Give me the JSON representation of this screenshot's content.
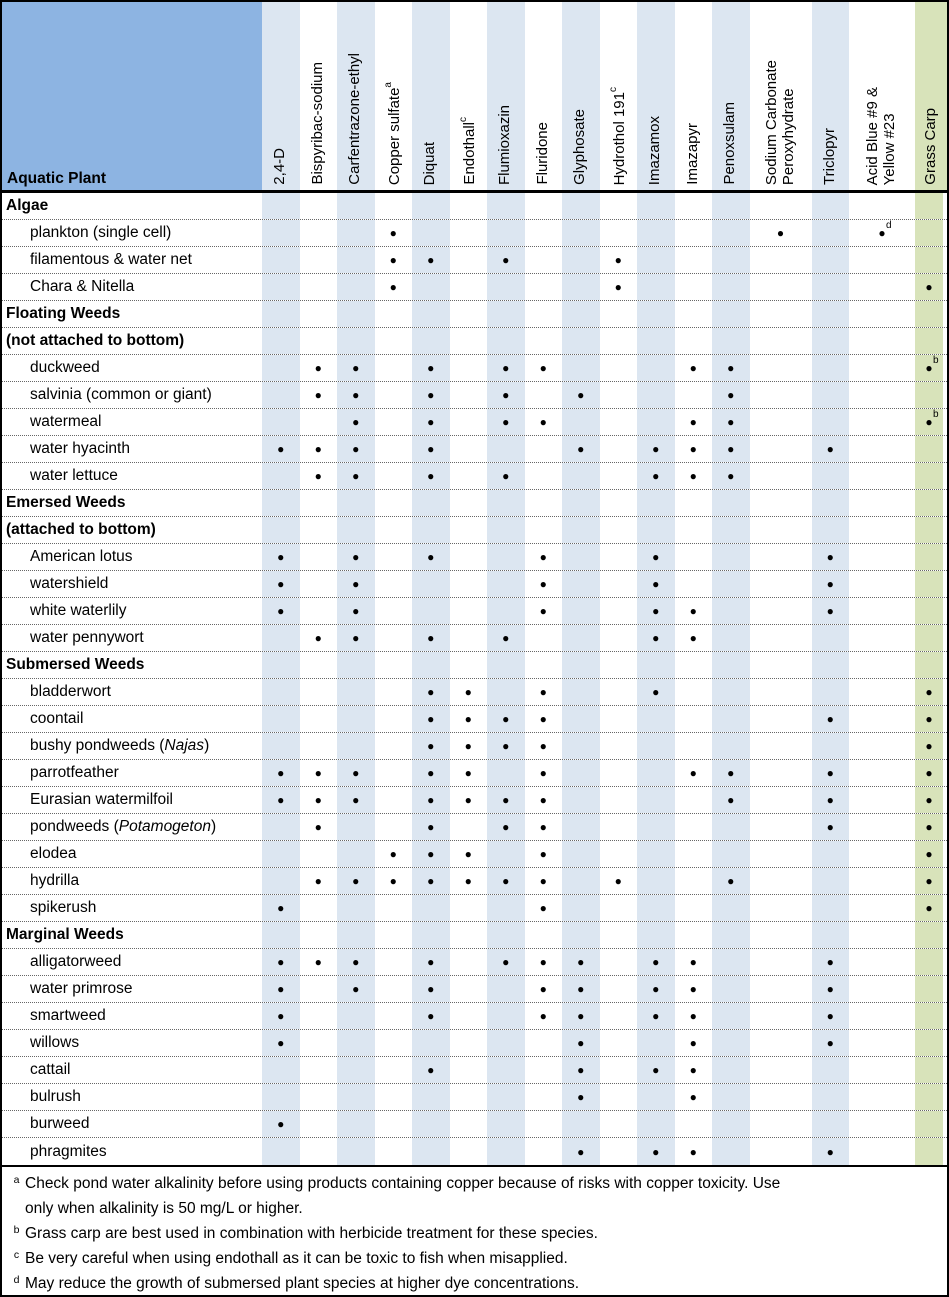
{
  "header": {
    "plant_column_label": "Aquatic Plant"
  },
  "columns": [
    {
      "label": "2,4-D",
      "shade": "blue",
      "width": "narrow"
    },
    {
      "label": "Bispyribac-sodium",
      "shade": "white",
      "width": "narrow"
    },
    {
      "label": "Carfentrazone-ethyl",
      "shade": "blue",
      "width": "narrow"
    },
    {
      "label": "Copper sulfate",
      "sup": "a",
      "shade": "white",
      "width": "narrow"
    },
    {
      "label": "Diquat",
      "shade": "blue",
      "width": "narrow"
    },
    {
      "label": "Endothall",
      "sup": "c",
      "shade": "white",
      "width": "narrow"
    },
    {
      "label": "Flumioxazin",
      "shade": "blue",
      "width": "narrow"
    },
    {
      "label": "Fluridone",
      "shade": "white",
      "width": "narrow"
    },
    {
      "label": "Glyphosate",
      "shade": "blue",
      "width": "narrow"
    },
    {
      "label": "Hydrothol 191",
      "sup": "c",
      "shade": "white",
      "width": "narrow"
    },
    {
      "label": "Imazamox",
      "shade": "blue",
      "width": "narrow"
    },
    {
      "label": "Imazapyr",
      "shade": "white",
      "width": "narrow"
    },
    {
      "label": "Penoxsulam",
      "shade": "blue",
      "width": "narrow"
    },
    {
      "label": "Sodium Carbonate\nPeroxyhydrate",
      "shade": "white",
      "width": "wide-a"
    },
    {
      "label": "Triclopyr",
      "shade": "blue",
      "width": "narrow"
    },
    {
      "label": "Acid Blue #9 &\nYellow #23",
      "shade": "white",
      "width": "wide-b"
    },
    {
      "label": "Grass Carp",
      "shade": "green",
      "width": "fill"
    }
  ],
  "rows": [
    {
      "section": true,
      "label": "Algae"
    },
    {
      "section": false,
      "label": "plankton (single cell)",
      "dots": [
        [
          4
        ],
        [
          14
        ],
        [
          16,
          "d"
        ]
      ]
    },
    {
      "section": false,
      "label": "filamentous & water net",
      "dots": [
        [
          4
        ],
        [
          5
        ],
        [
          7
        ],
        [
          10
        ]
      ]
    },
    {
      "section": false,
      "label": "Chara & Nitella",
      "dots": [
        [
          4
        ],
        [
          10
        ],
        [
          17
        ]
      ]
    },
    {
      "section": true,
      "label": "Floating Weeds"
    },
    {
      "section": true,
      "label": "(not attached to bottom)"
    },
    {
      "section": false,
      "label": "duckweed",
      "dots": [
        [
          2
        ],
        [
          3
        ],
        [
          5
        ],
        [
          7
        ],
        [
          8
        ],
        [
          12
        ],
        [
          13
        ],
        [
          17,
          "b"
        ]
      ]
    },
    {
      "section": false,
      "label": "salvinia (common or giant)",
      "dots": [
        [
          2
        ],
        [
          3
        ],
        [
          5
        ],
        [
          7
        ],
        [
          9
        ],
        [
          13
        ]
      ]
    },
    {
      "section": false,
      "label": "watermeal",
      "dots": [
        [
          3
        ],
        [
          5
        ],
        [
          7
        ],
        [
          8
        ],
        [
          12
        ],
        [
          13
        ],
        [
          17,
          "b"
        ]
      ]
    },
    {
      "section": false,
      "label": "water hyacinth",
      "dots": [
        [
          1
        ],
        [
          2
        ],
        [
          3
        ],
        [
          5
        ],
        [
          9
        ],
        [
          11
        ],
        [
          12
        ],
        [
          13
        ],
        [
          15
        ]
      ]
    },
    {
      "section": false,
      "label": "water lettuce",
      "dots": [
        [
          2
        ],
        [
          3
        ],
        [
          5
        ],
        [
          7
        ],
        [
          11
        ],
        [
          12
        ],
        [
          13
        ]
      ]
    },
    {
      "section": true,
      "label": "Emersed Weeds"
    },
    {
      "section": true,
      "label": "(attached to bottom)"
    },
    {
      "section": false,
      "label": "American lotus",
      "dots": [
        [
          1
        ],
        [
          3
        ],
        [
          5
        ],
        [
          8
        ],
        [
          11
        ],
        [
          15
        ]
      ]
    },
    {
      "section": false,
      "label": "watershield",
      "dots": [
        [
          1
        ],
        [
          3
        ],
        [
          8
        ],
        [
          11
        ],
        [
          15
        ]
      ]
    },
    {
      "section": false,
      "label": "white waterlily",
      "dots": [
        [
          1
        ],
        [
          3
        ],
        [
          8
        ],
        [
          11
        ],
        [
          12
        ],
        [
          15
        ]
      ]
    },
    {
      "section": false,
      "label": "water pennywort",
      "dots": [
        [
          2
        ],
        [
          3
        ],
        [
          5
        ],
        [
          7
        ],
        [
          11
        ],
        [
          12
        ]
      ]
    },
    {
      "section": true,
      "label": "Submersed Weeds"
    },
    {
      "section": false,
      "label": "bladderwort",
      "dots": [
        [
          5
        ],
        [
          6
        ],
        [
          8
        ],
        [
          11
        ],
        [
          17
        ]
      ]
    },
    {
      "section": false,
      "label": "coontail",
      "dots": [
        [
          5
        ],
        [
          6
        ],
        [
          7
        ],
        [
          8
        ],
        [
          15
        ],
        [
          17
        ]
      ]
    },
    {
      "section": false,
      "label": "bushy pondweeds (Najas )",
      "parts": [
        {
          "text": "bushy pondweeds ("
        },
        {
          "text": "Najas",
          "italic": true
        },
        {
          "text": " )"
        }
      ],
      "dots": [
        [
          5
        ],
        [
          6
        ],
        [
          7
        ],
        [
          8
        ],
        [
          17
        ]
      ]
    },
    {
      "section": false,
      "label": "parrotfeather",
      "dots": [
        [
          1
        ],
        [
          2
        ],
        [
          3
        ],
        [
          5
        ],
        [
          6
        ],
        [
          8
        ],
        [
          12
        ],
        [
          13
        ],
        [
          15
        ],
        [
          17
        ]
      ]
    },
    {
      "section": false,
      "label": "Eurasian watermilfoil",
      "dots": [
        [
          1
        ],
        [
          2
        ],
        [
          3
        ],
        [
          5
        ],
        [
          6
        ],
        [
          7
        ],
        [
          8
        ],
        [
          13
        ],
        [
          15
        ],
        [
          17
        ]
      ]
    },
    {
      "section": false,
      "label": "pondweeds (Potamogeton )",
      "parts": [
        {
          "text": "pondweeds ("
        },
        {
          "text": "Potamogeton",
          "italic": true
        },
        {
          "text": " )"
        }
      ],
      "dots": [
        [
          2
        ],
        [
          5
        ],
        [
          7
        ],
        [
          8
        ],
        [
          15
        ],
        [
          17
        ]
      ]
    },
    {
      "section": false,
      "label": "elodea",
      "dots": [
        [
          4
        ],
        [
          5
        ],
        [
          6
        ],
        [
          8
        ],
        [
          17
        ]
      ]
    },
    {
      "section": false,
      "label": "hydrilla",
      "dots": [
        [
          2
        ],
        [
          3
        ],
        [
          4
        ],
        [
          5
        ],
        [
          6
        ],
        [
          7
        ],
        [
          8
        ],
        [
          10
        ],
        [
          13
        ],
        [
          17
        ]
      ]
    },
    {
      "section": false,
      "label": "spikerush",
      "dots": [
        [
          1
        ],
        [
          8
        ],
        [
          17
        ]
      ]
    },
    {
      "section": true,
      "label": "Marginal Weeds"
    },
    {
      "section": false,
      "label": "alligatorweed",
      "dots": [
        [
          1
        ],
        [
          2
        ],
        [
          3
        ],
        [
          5
        ],
        [
          7
        ],
        [
          8
        ],
        [
          9
        ],
        [
          11
        ],
        [
          12
        ],
        [
          15
        ]
      ]
    },
    {
      "section": false,
      "label": "water primrose",
      "dots": [
        [
          1
        ],
        [
          3
        ],
        [
          5
        ],
        [
          8
        ],
        [
          9
        ],
        [
          11
        ],
        [
          12
        ],
        [
          15
        ]
      ]
    },
    {
      "section": false,
      "label": "smartweed",
      "dots": [
        [
          1
        ],
        [
          5
        ],
        [
          8
        ],
        [
          9
        ],
        [
          11
        ],
        [
          12
        ],
        [
          15
        ]
      ]
    },
    {
      "section": false,
      "label": "willows",
      "dots": [
        [
          1
        ],
        [
          9
        ],
        [
          12
        ],
        [
          15
        ]
      ]
    },
    {
      "section": false,
      "label": "cattail",
      "dots": [
        [
          5
        ],
        [
          9
        ],
        [
          11
        ],
        [
          12
        ]
      ]
    },
    {
      "section": false,
      "label": "bulrush",
      "dots": [
        [
          9
        ],
        [
          12
        ]
      ]
    },
    {
      "section": false,
      "label": "burweed",
      "dots": [
        [
          1
        ]
      ]
    },
    {
      "section": false,
      "label": "phragmites",
      "dots": [
        [
          9
        ],
        [
          11
        ],
        [
          12
        ],
        [
          15
        ]
      ]
    }
  ],
  "bullet_glyph": "●",
  "footnotes": [
    {
      "letter": "a",
      "text": "Check pond water alkalinity before using products containing copper because of risks with copper toxicity.  Use\nonly when alkalinity is 50 mg/L or higher."
    },
    {
      "letter": "b",
      "text": "Grass carp are best used in combination with herbicide treatment for these species."
    },
    {
      "letter": "c",
      "text": "Be very careful when using endothall as it can be toxic to fish when misapplied."
    },
    {
      "letter": "d",
      "text": "May reduce the growth of submersed plant species at higher dye concentrations."
    }
  ],
  "colors": {
    "header_blue": "#8db4e2",
    "stripe_blue": "#dce6f1",
    "grass_carp_green": "#d8e3ba",
    "text": "#000000"
  }
}
